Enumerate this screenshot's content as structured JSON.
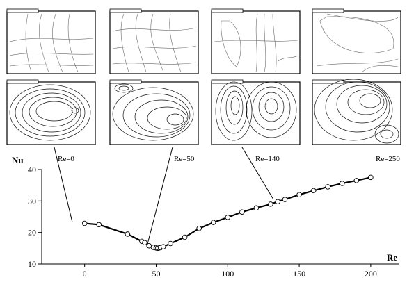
{
  "chart_data": {
    "type": "line",
    "title": "",
    "xlabel": "Re",
    "ylabel": "Nu",
    "xlim": [
      -30,
      220
    ],
    "ylim": [
      10,
      40
    ],
    "xticks": [
      0,
      50,
      100,
      150,
      200
    ],
    "yticks": [
      10,
      20,
      30,
      40
    ],
    "grid": false,
    "series": [
      {
        "x": [
          0,
          10,
          30,
          40,
          42,
          45,
          48,
          50,
          51,
          52,
          53,
          55,
          60,
          70,
          80,
          90,
          100,
          110,
          120,
          130,
          135,
          140,
          150,
          160,
          170,
          180,
          190,
          200
        ],
        "y": [
          22.9,
          22.5,
          19.5,
          17.2,
          16.8,
          15.8,
          15.3,
          15.1,
          15.0,
          15.1,
          15.2,
          15.5,
          16.5,
          18.5,
          21.3,
          23.2,
          24.8,
          26.5,
          27.8,
          29.0,
          29.8,
          30.5,
          32.0,
          33.3,
          34.5,
          35.6,
          36.5,
          37.5
        ]
      }
    ],
    "annotations": [
      {
        "label": "Re=0",
        "re": 0
      },
      {
        "label": "Re=50",
        "re": 50
      },
      {
        "label": "Re=140",
        "re": 140
      },
      {
        "label": "Re=250",
        "re": 250
      }
    ]
  }
}
